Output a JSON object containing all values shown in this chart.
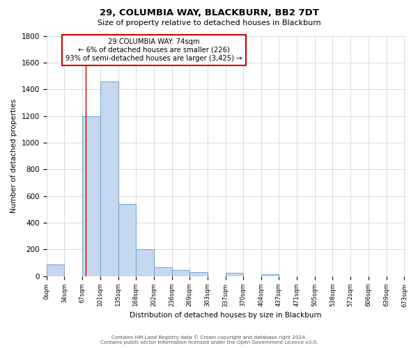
{
  "title": "29, COLUMBIA WAY, BLACKBURN, BB2 7DT",
  "subtitle": "Size of property relative to detached houses in Blackburn",
  "xlabel": "Distribution of detached houses by size in Blackburn",
  "ylabel": "Number of detached properties",
  "bar_color": "#c5d8f0",
  "bar_edge_color": "#7ba8d4",
  "bin_edges": [
    0,
    34,
    67,
    101,
    135,
    168,
    202,
    236,
    269,
    303,
    337,
    370,
    404,
    437,
    471,
    505,
    538,
    572,
    606,
    639,
    673
  ],
  "bar_heights": [
    90,
    0,
    1200,
    1460,
    540,
    205,
    65,
    48,
    30,
    0,
    25,
    0,
    15,
    0,
    0,
    0,
    0,
    0,
    0,
    0
  ],
  "tick_labels": [
    "0sqm",
    "34sqm",
    "67sqm",
    "101sqm",
    "135sqm",
    "168sqm",
    "202sqm",
    "236sqm",
    "269sqm",
    "303sqm",
    "337sqm",
    "370sqm",
    "404sqm",
    "437sqm",
    "471sqm",
    "505sqm",
    "538sqm",
    "572sqm",
    "606sqm",
    "639sqm",
    "673sqm"
  ],
  "ylim": [
    0,
    1800
  ],
  "yticks": [
    0,
    200,
    400,
    600,
    800,
    1000,
    1200,
    1400,
    1600,
    1800
  ],
  "vline_x": 74,
  "vline_color": "#cc0000",
  "annotation_title": "29 COLUMBIA WAY: 74sqm",
  "annotation_line1": "← 6% of detached houses are smaller (226)",
  "annotation_line2": "93% of semi-detached houses are larger (3,425) →",
  "annotation_box_color": "#ffffff",
  "annotation_box_edge": "#cc0000",
  "grid_color": "#cccccc",
  "background_color": "#ffffff",
  "footer_line1": "Contains HM Land Registry data © Crown copyright and database right 2024.",
  "footer_line2": "Contains public sector information licensed under the Open Government Licence v3.0."
}
